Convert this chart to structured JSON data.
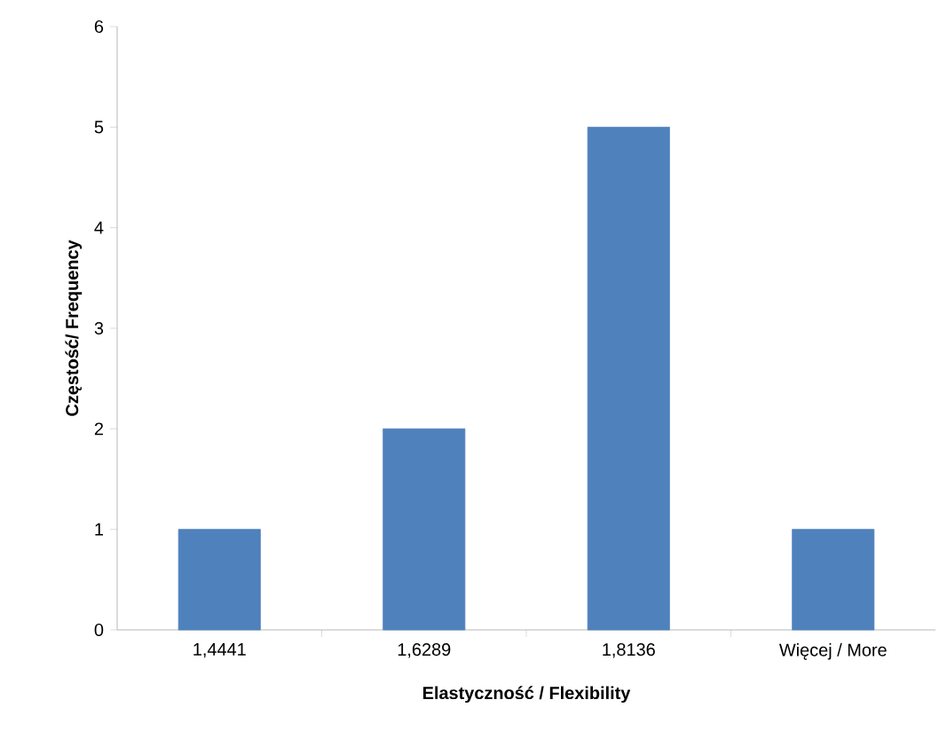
{
  "chart_data": {
    "type": "bar",
    "xlabel": "Elastyczność / Flexibility",
    "ylabel": "Częstość/ Frequency",
    "categories": [
      "1,4441",
      "1,6289",
      "1,8136",
      "Więcej / More"
    ],
    "values": [
      1,
      2,
      5,
      1
    ],
    "color": "#4f81bd",
    "ylim": [
      0,
      6
    ],
    "yticks": [
      0,
      1,
      2,
      3,
      4,
      5,
      6
    ],
    "grid": false
  }
}
